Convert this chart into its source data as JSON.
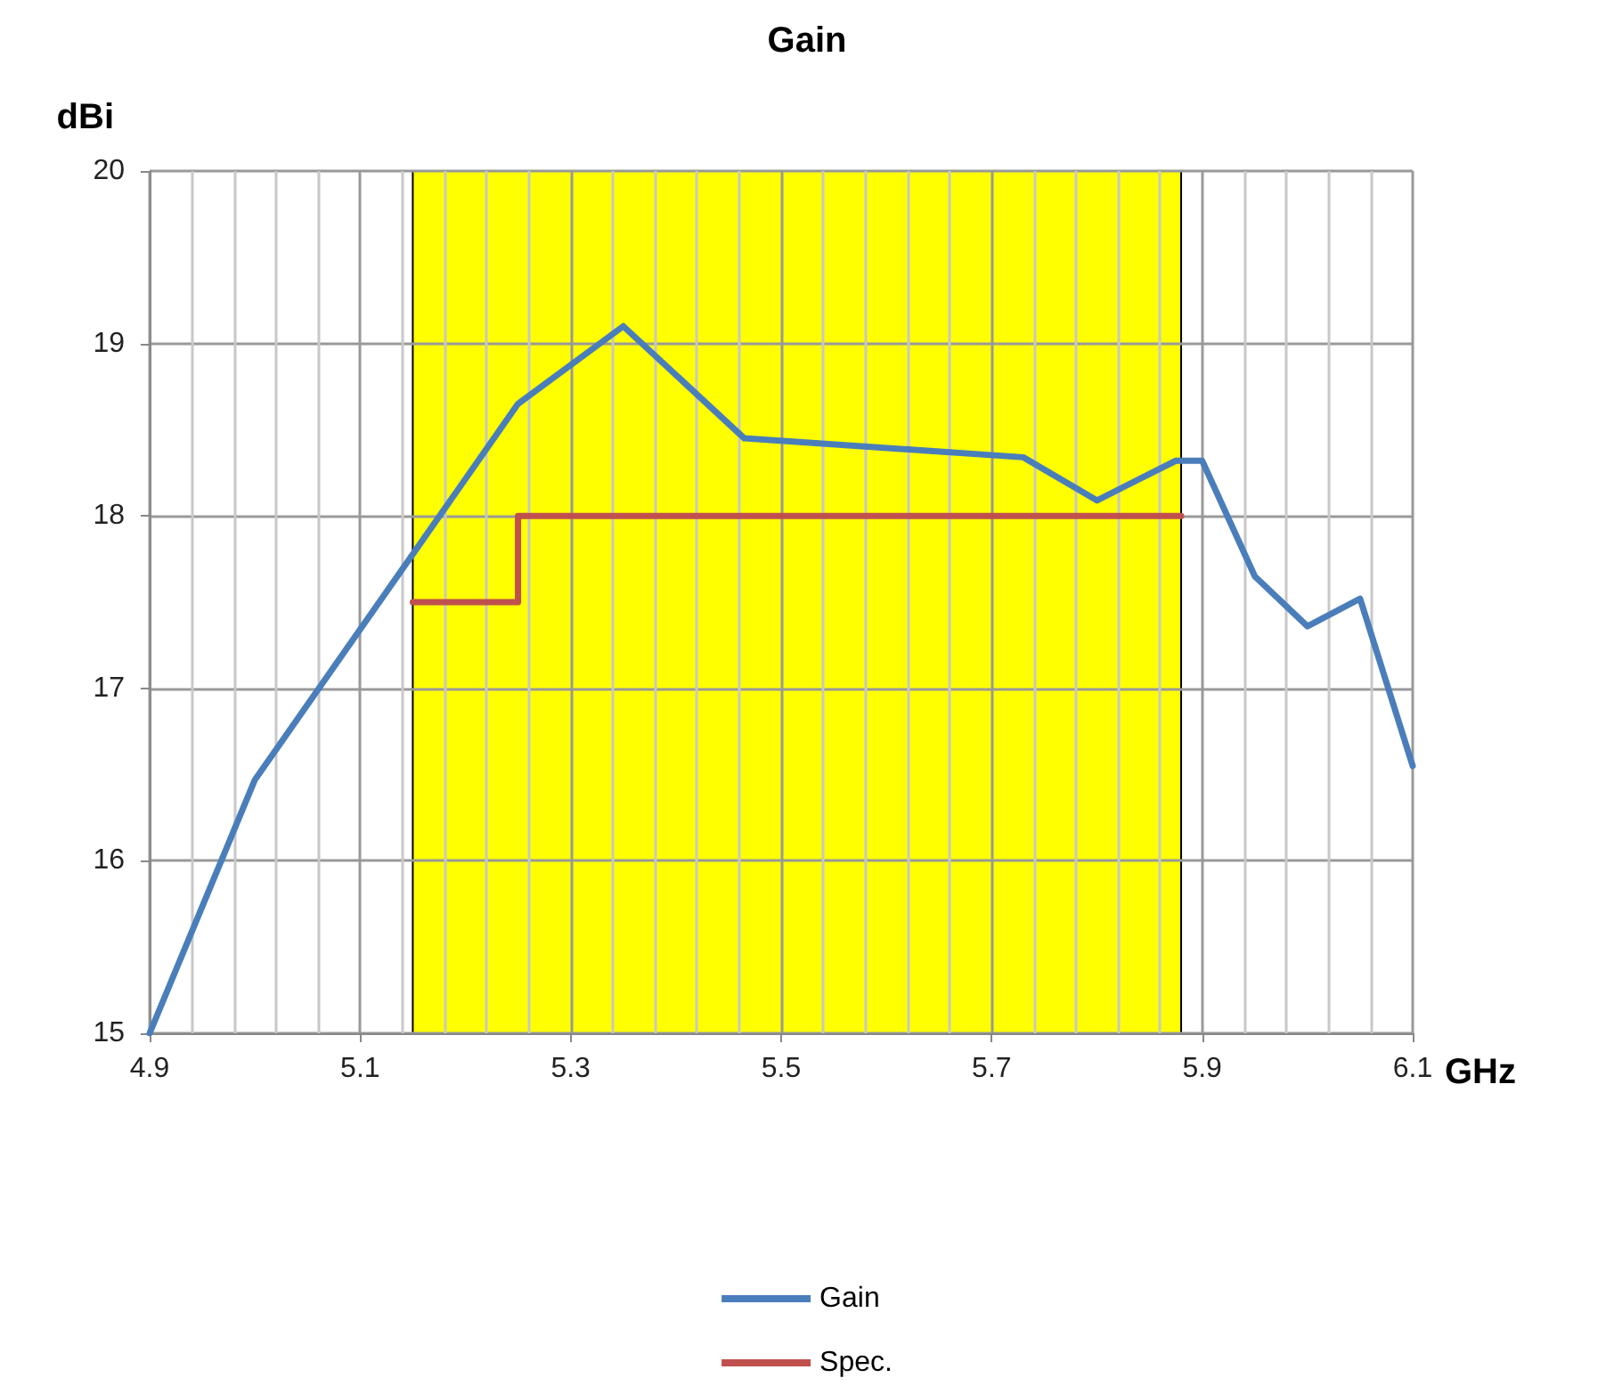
{
  "chart_data": {
    "type": "line",
    "title": "Gain",
    "xlabel": "GHz",
    "ylabel": "dBi",
    "xlim": [
      4.9,
      6.1
    ],
    "xticks": [
      4.9,
      5.1,
      5.3,
      5.5,
      5.7,
      5.9,
      6.1
    ],
    "ylim": [
      15,
      20
    ],
    "yticks": [
      15,
      16,
      17,
      18,
      19,
      20
    ],
    "grid": true,
    "legend": "bottom",
    "marker": "none",
    "line_style": "solid",
    "bands": [
      {
        "axis": "x",
        "from": 5.15,
        "to": 5.88,
        "color": "#ffff00"
      }
    ],
    "series": [
      {
        "name": "Gain",
        "color": "#4a7ebb",
        "x": [
          4.9,
          5.0,
          5.25,
          5.35,
          5.465,
          5.73,
          5.8,
          5.875,
          5.9,
          5.95,
          6.0,
          6.05,
          6.1
        ],
        "values": [
          15.0,
          16.47,
          18.65,
          19.1,
          18.45,
          18.34,
          18.09,
          18.32,
          18.32,
          17.65,
          17.36,
          17.52,
          16.55
        ]
      },
      {
        "name": "Spec.",
        "type": "step",
        "color": "#c0504d",
        "x": [
          5.15,
          5.25,
          5.88
        ],
        "values": [
          17.5,
          18,
          18
        ]
      }
    ]
  }
}
